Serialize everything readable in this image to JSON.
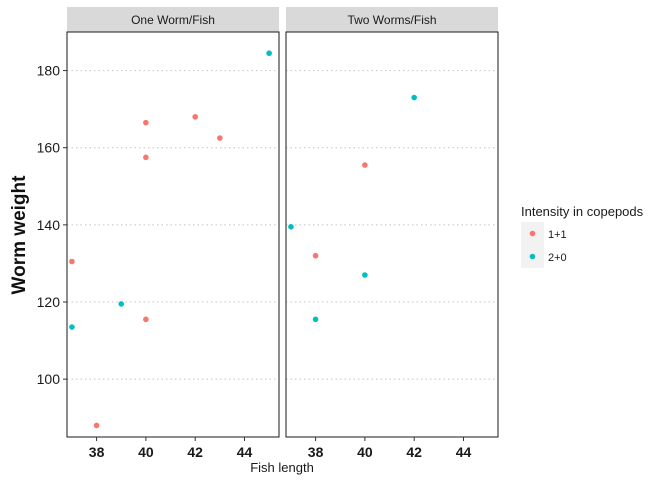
{
  "chart_data": {
    "type": "scatter",
    "xlabel": "Fish length",
    "ylabel": "Worm weight",
    "xlim": [
      36.8,
      45.4
    ],
    "ylim": [
      85,
      190
    ],
    "x_ticks": [
      38,
      40,
      42,
      44
    ],
    "y_ticks": [
      100,
      120,
      140,
      160,
      180
    ],
    "y_grid": "dotted",
    "panels": [
      {
        "strip": "One Worm/Fish",
        "points": [
          {
            "x": 37,
            "y": 130.5,
            "group": "1+1"
          },
          {
            "x": 38,
            "y": 88,
            "group": "1+1"
          },
          {
            "x": 40,
            "y": 166.5,
            "group": "1+1"
          },
          {
            "x": 40,
            "y": 157.5,
            "group": "1+1"
          },
          {
            "x": 40,
            "y": 115.5,
            "group": "1+1"
          },
          {
            "x": 42,
            "y": 168,
            "group": "1+1"
          },
          {
            "x": 43,
            "y": 162.5,
            "group": "1+1"
          },
          {
            "x": 37,
            "y": 113.5,
            "group": "2+0"
          },
          {
            "x": 39,
            "y": 119.5,
            "group": "2+0"
          },
          {
            "x": 45,
            "y": 184.5,
            "group": "2+0"
          }
        ]
      },
      {
        "strip": "Two Worms/Fish",
        "points": [
          {
            "x": 38,
            "y": 132,
            "group": "1+1"
          },
          {
            "x": 40,
            "y": 155.5,
            "group": "1+1"
          },
          {
            "x": 37,
            "y": 139.5,
            "group": "2+0"
          },
          {
            "x": 38,
            "y": 115.5,
            "group": "2+0"
          },
          {
            "x": 40,
            "y": 127,
            "group": "2+0"
          },
          {
            "x": 42,
            "y": 173,
            "group": "2+0"
          }
        ]
      }
    ],
    "legend": {
      "title": "Intensity in copepods",
      "placement": "right",
      "entries": [
        {
          "label": "1+1",
          "color": "#F8766D"
        },
        {
          "label": "2+0",
          "color": "#00BFC4"
        }
      ]
    }
  }
}
